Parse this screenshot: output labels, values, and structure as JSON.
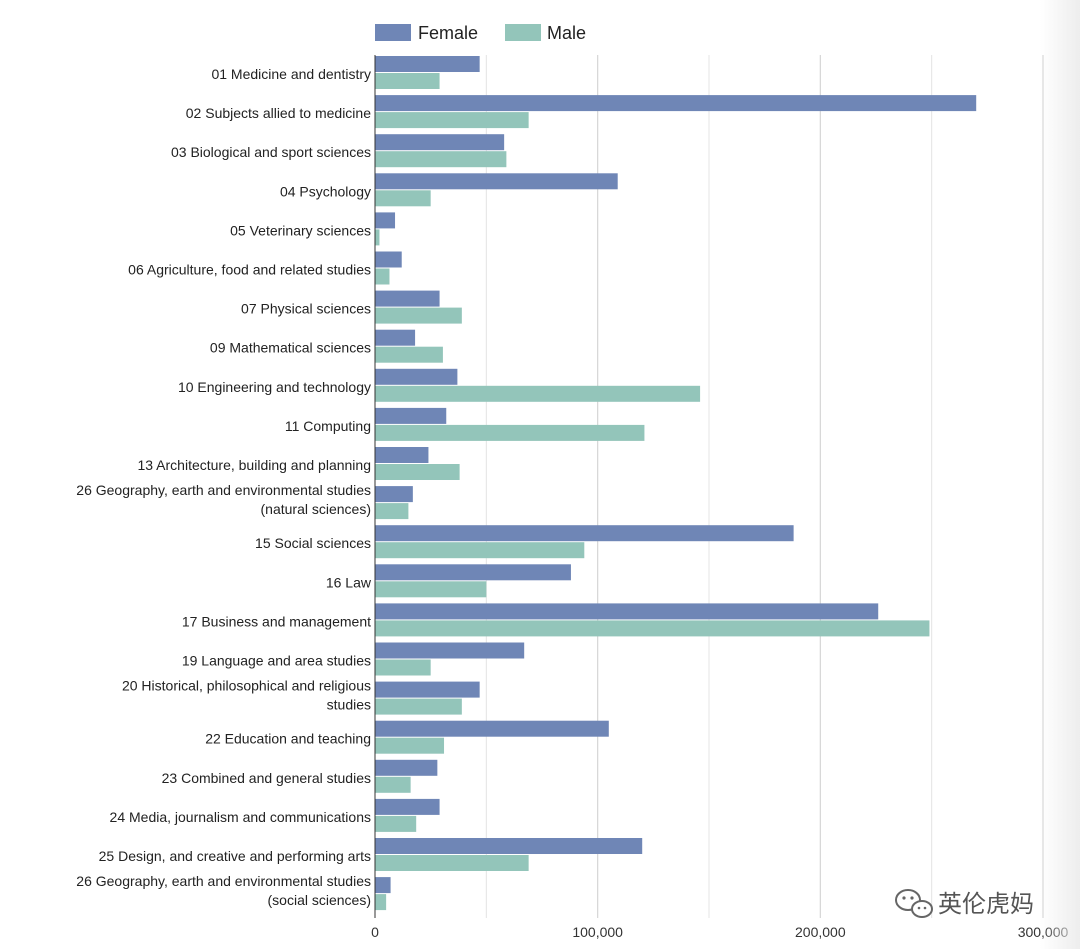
{
  "chart_data": {
    "type": "bar",
    "orientation": "horizontal",
    "categories": [
      "01 Medicine and dentistry",
      "02 Subjects allied to medicine",
      "03 Biological and sport sciences",
      "04 Psychology",
      "05 Veterinary sciences",
      "06 Agriculture, food and related studies",
      "07 Physical sciences",
      "09 Mathematical sciences",
      "10 Engineering and technology",
      "11 Computing",
      "13 Architecture, building and planning",
      "26 Geography, earth and environmental studies (natural sciences)",
      "15 Social sciences",
      "16 Law",
      "17 Business and management",
      "19 Language and area studies",
      "20 Historical, philosophical and religious studies",
      "22 Education and teaching",
      "23 Combined and general studies",
      "24 Media, journalism and communications",
      "25 Design, and creative and performing arts",
      "26 Geography, earth and environmental studies (social sciences)"
    ],
    "series": [
      {
        "name": "Female",
        "color": "#6f86b6",
        "values": [
          47000,
          270000,
          58000,
          109000,
          9000,
          12000,
          29000,
          18000,
          37000,
          32000,
          24000,
          17000,
          188000,
          88000,
          226000,
          67000,
          47000,
          105000,
          28000,
          29000,
          120000,
          7000
        ]
      },
      {
        "name": "Male",
        "color": "#93c5ba",
        "values": [
          29000,
          69000,
          59000,
          25000,
          2000,
          6500,
          39000,
          30500,
          146000,
          121000,
          38000,
          15000,
          94000,
          50000,
          249000,
          25000,
          39000,
          31000,
          16000,
          18500,
          69000,
          5000
        ]
      }
    ],
    "x_ticks": [
      "0",
      "100,000",
      "200,000",
      "300,000"
    ],
    "xlim": [
      0,
      300000
    ],
    "grid": "vertical",
    "legend_position": "top-center",
    "title": "",
    "xlabel": "",
    "ylabel": ""
  },
  "watermark": {
    "icon": "wechat-icon",
    "text": "英伦虎妈"
  }
}
